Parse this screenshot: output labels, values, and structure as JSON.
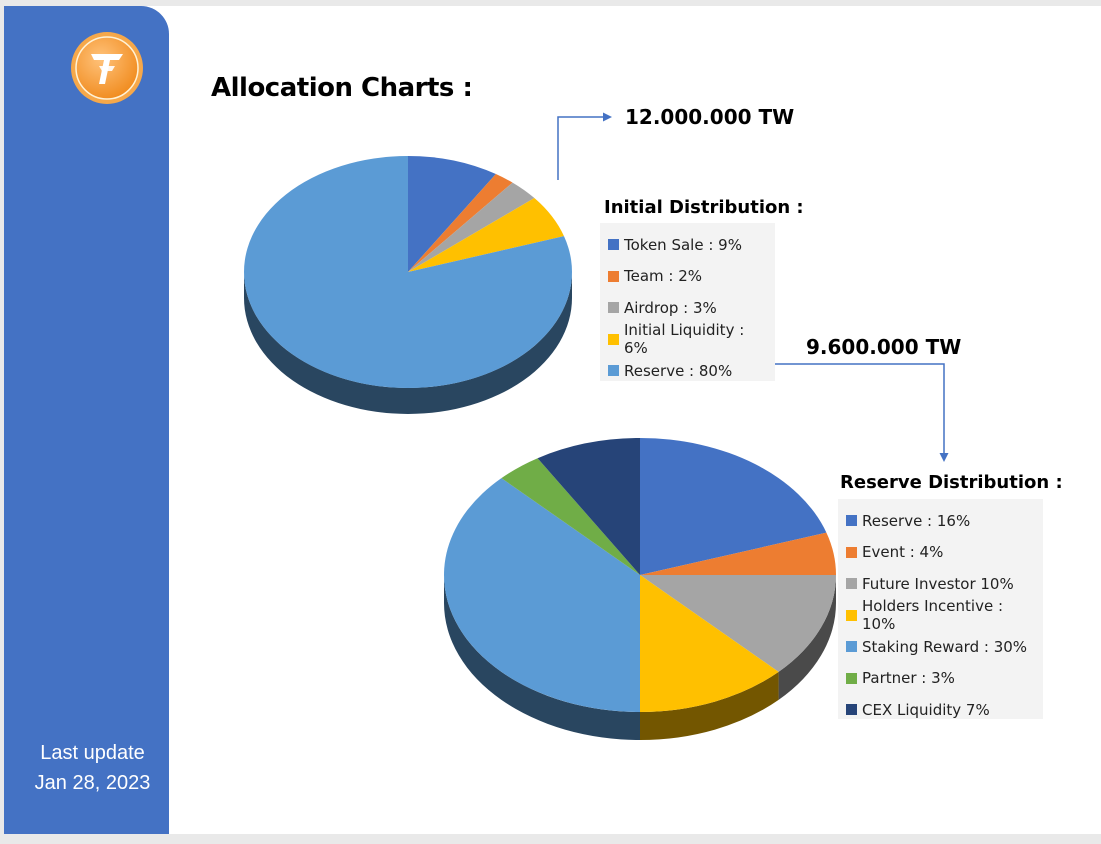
{
  "sidebar": {
    "last_update_label": "Last update",
    "last_update_date": "Jan 28, 2023"
  },
  "page": {
    "title": "Allocation Charts :"
  },
  "chart_data": [
    {
      "type": "pie",
      "amount": "12.000.000 TW",
      "legend_title": "Initial Distribution :",
      "categories": [
        "Token Sale",
        "Team",
        "Airdrop",
        "Initial Liquidity",
        "Reserve"
      ],
      "values": [
        9,
        2,
        3,
        6,
        80
      ],
      "labels": [
        "Token Sale : 9%",
        "Team : 2%",
        "Airdrop : 3%",
        "Initial Liquidity : 6%",
        "Reserve : 80%"
      ],
      "colors": [
        "#4472c4",
        "#ed7d31",
        "#a5a5a5",
        "#ffc000",
        "#5b9bd5"
      ],
      "legend": "right"
    },
    {
      "type": "pie",
      "amount": "9.600.000 TW",
      "legend_title": "Reserve Distribution :",
      "categories": [
        "Reserve",
        "Event",
        "Future Investor",
        "Holders Incentive",
        "Staking Reward",
        "Partner",
        "CEX Liquidity"
      ],
      "values": [
        16,
        4,
        10,
        10,
        30,
        3,
        7
      ],
      "labels": [
        "Reserve : 16%",
        "Event : 4%",
        "Future Investor 10%",
        "Holders Incentive : 10%",
        "Staking Reward : 30%",
        "Partner : 3%",
        "CEX Liquidity 7%"
      ],
      "colors": [
        "#4472c4",
        "#ed7d31",
        "#a5a5a5",
        "#ffc000",
        "#5b9bd5",
        "#70ad47",
        "#264478"
      ],
      "legend": "right"
    }
  ]
}
